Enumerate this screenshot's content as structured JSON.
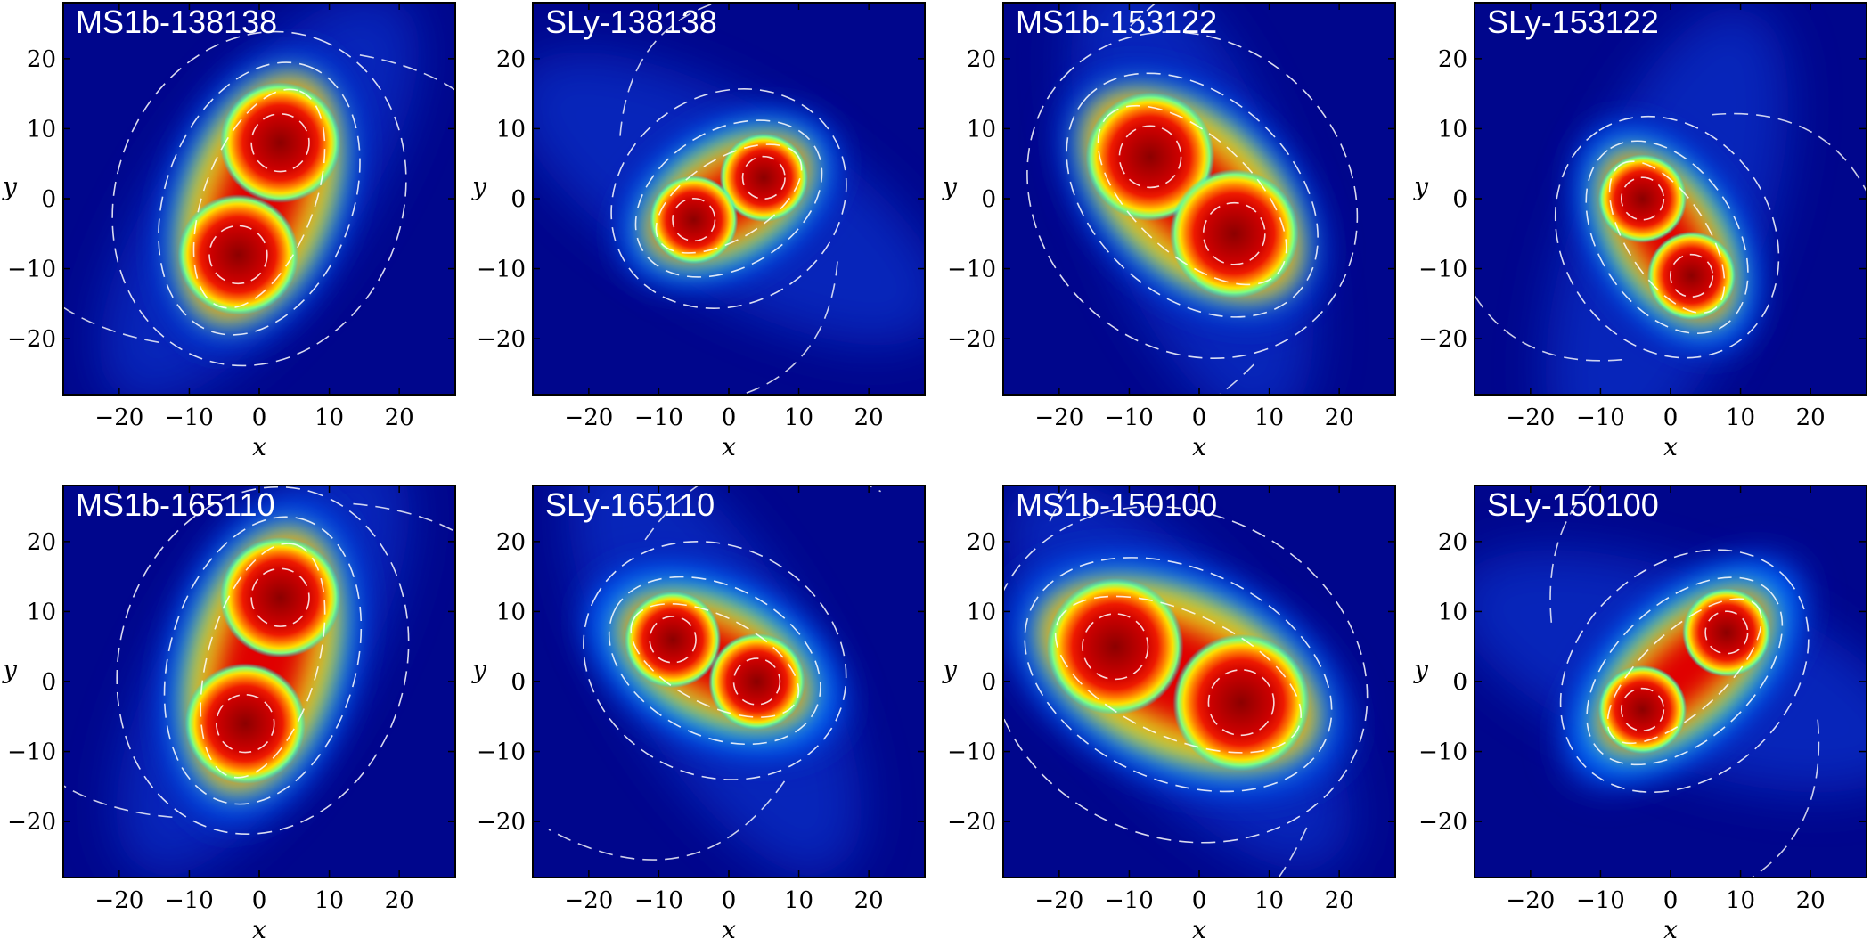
{
  "chart_data": [
    {
      "type": "heatmap",
      "title": "MS1b-138138",
      "xlabel": "x",
      "ylabel": "y",
      "xlim": [
        -28,
        28
      ],
      "ylim": [
        -28,
        28
      ],
      "xticks": [
        -20,
        -10,
        0,
        10,
        20
      ],
      "yticks": [
        -20,
        -10,
        0,
        10,
        20
      ],
      "cores": [
        {
          "x": 3,
          "y": 8
        },
        {
          "x": -3,
          "y": -8
        }
      ],
      "core_radius": 7.5,
      "envelope_scale": 1.25,
      "swirl_angle_deg": 55
    },
    {
      "type": "heatmap",
      "title": "SLy-138138",
      "xlabel": "x",
      "ylabel": "y",
      "xlim": [
        -28,
        28
      ],
      "ylim": [
        -28,
        28
      ],
      "xticks": [
        -20,
        -10,
        0,
        10,
        20
      ],
      "yticks": [
        -20,
        -10,
        0,
        10,
        20
      ],
      "cores": [
        {
          "x": 5,
          "y": 3
        },
        {
          "x": -5,
          "y": -3
        }
      ],
      "core_radius": 5.5,
      "envelope_scale": 1.4,
      "swirl_angle_deg": 150
    },
    {
      "type": "heatmap",
      "title": "MS1b-153122",
      "xlabel": "x",
      "ylabel": "y",
      "xlim": [
        -28,
        28
      ],
      "ylim": [
        -28,
        28
      ],
      "xticks": [
        -20,
        -10,
        0,
        10,
        20
      ],
      "yticks": [
        -20,
        -10,
        0,
        10,
        20
      ],
      "cores": [
        {
          "x": -7,
          "y": 6
        },
        {
          "x": 5,
          "y": -5
        }
      ],
      "core_radius": 8,
      "envelope_scale": 1.25,
      "swirl_angle_deg": 110
    },
    {
      "type": "heatmap",
      "title": "SLy-153122",
      "xlabel": "x",
      "ylabel": "y",
      "xlim": [
        -28,
        28
      ],
      "ylim": [
        -28,
        28
      ],
      "xticks": [
        -20,
        -10,
        0,
        10,
        20
      ],
      "yticks": [
        -20,
        -10,
        0,
        10,
        20
      ],
      "cores": [
        {
          "x": -4,
          "y": 0
        },
        {
          "x": 3,
          "y": -11
        }
      ],
      "core_radius": 5.5,
      "envelope_scale": 1.4,
      "swirl_angle_deg": 70
    },
    {
      "type": "heatmap",
      "title": "MS1b-165110",
      "xlabel": "x",
      "ylabel": "y",
      "xlim": [
        -28,
        28
      ],
      "ylim": [
        -28,
        28
      ],
      "xticks": [
        -20,
        -10,
        0,
        10,
        20
      ],
      "yticks": [
        -20,
        -10,
        0,
        10,
        20
      ],
      "cores": [
        {
          "x": 3,
          "y": 12
        },
        {
          "x": -2,
          "y": -6
        }
      ],
      "core_radius": 7.5,
      "envelope_scale": 1.3,
      "swirl_angle_deg": 60
    },
    {
      "type": "heatmap",
      "title": "SLy-165110",
      "xlabel": "x",
      "ylabel": "y",
      "xlim": [
        -28,
        28
      ],
      "ylim": [
        -28,
        28
      ],
      "xticks": [
        -20,
        -10,
        0,
        10,
        20
      ],
      "yticks": [
        -20,
        -10,
        0,
        10,
        20
      ],
      "cores": [
        {
          "x": -8,
          "y": 6
        },
        {
          "x": 4,
          "y": 0
        }
      ],
      "core_radius": 6,
      "envelope_scale": 1.45,
      "swirl_angle_deg": 120
    },
    {
      "type": "heatmap",
      "title": "MS1b-150100",
      "xlabel": "x",
      "ylabel": "y",
      "xlim": [
        -28,
        28
      ],
      "ylim": [
        -28,
        28
      ],
      "xticks": [
        -20,
        -10,
        0,
        10,
        20
      ],
      "yticks": [
        -20,
        -10,
        0,
        10,
        20
      ],
      "cores": [
        {
          "x": -12,
          "y": 5
        },
        {
          "x": 6,
          "y": -3
        }
      ],
      "core_radius": 8.5,
      "envelope_scale": 1.3,
      "swirl_angle_deg": 130
    },
    {
      "type": "heatmap",
      "title": "SLy-150100",
      "xlabel": "x",
      "ylabel": "y",
      "xlim": [
        -28,
        28
      ],
      "ylim": [
        -28,
        28
      ],
      "xticks": [
        -20,
        -10,
        0,
        10,
        20
      ],
      "yticks": [
        -20,
        -10,
        0,
        10,
        20
      ],
      "cores": [
        {
          "x": 8,
          "y": 7
        },
        {
          "x": -4,
          "y": -4
        }
      ],
      "core_radius": 5.5,
      "envelope_scale": 1.45,
      "swirl_angle_deg": 160
    }
  ]
}
